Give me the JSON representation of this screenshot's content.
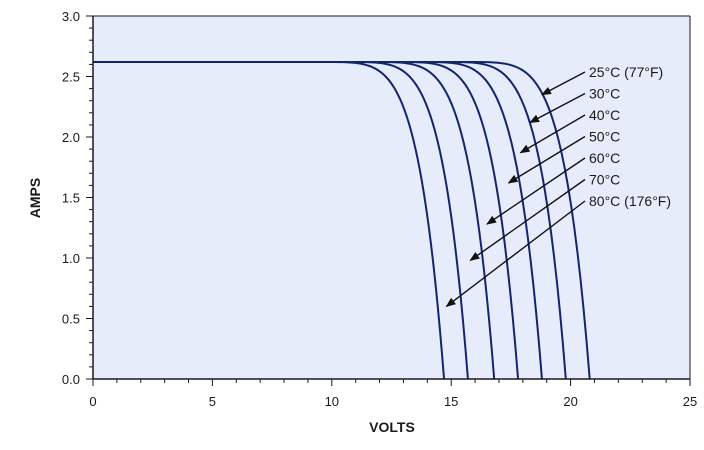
{
  "chart_data": {
    "type": "line",
    "xlabel": "VOLTS",
    "ylabel": "AMPS",
    "xlim": [
      0,
      25
    ],
    "ylim": [
      0,
      3.0
    ],
    "xticks": [
      0,
      5,
      10,
      15,
      20,
      25
    ],
    "xtick_labels": [
      "0",
      "5",
      "10",
      "15",
      "20",
      "25"
    ],
    "yticks": [
      0,
      0.5,
      1.0,
      1.5,
      2.0,
      2.5,
      3.0
    ],
    "ytick_labels": [
      "0.0",
      "0.5",
      "1.0",
      "1.5",
      "2.0",
      "2.5",
      "3.0"
    ],
    "grid": false,
    "colors": {
      "plot_bg": "#e6ecfa",
      "line": "#14246e",
      "axis": "#1a1a1a",
      "arrow": "#111111"
    },
    "short_circuit_current": 2.62,
    "series": [
      {
        "name": "25°C (77°F)",
        "voc": 20.8,
        "knee": 15.0,
        "arrow_to": [
          18.8,
          2.35
        ]
      },
      {
        "name": "30°C",
        "voc": 19.8,
        "knee": 14.0,
        "arrow_to": [
          18.3,
          2.12
        ]
      },
      {
        "name": "40°C",
        "voc": 18.8,
        "knee": 13.0,
        "arrow_to": [
          17.9,
          1.87
        ]
      },
      {
        "name": "50°C",
        "voc": 17.8,
        "knee": 12.0,
        "arrow_to": [
          17.4,
          1.62
        ]
      },
      {
        "name": "60°C",
        "voc": 16.8,
        "knee": 11.0,
        "arrow_to": [
          16.5,
          1.28
        ]
      },
      {
        "name": "70°C",
        "voc": 15.7,
        "knee": 10.0,
        "arrow_to": [
          15.8,
          0.98
        ]
      },
      {
        "name": "80°C (176°F)",
        "voc": 14.7,
        "knee": 9.0,
        "arrow_to": [
          14.8,
          0.6
        ]
      }
    ]
  }
}
